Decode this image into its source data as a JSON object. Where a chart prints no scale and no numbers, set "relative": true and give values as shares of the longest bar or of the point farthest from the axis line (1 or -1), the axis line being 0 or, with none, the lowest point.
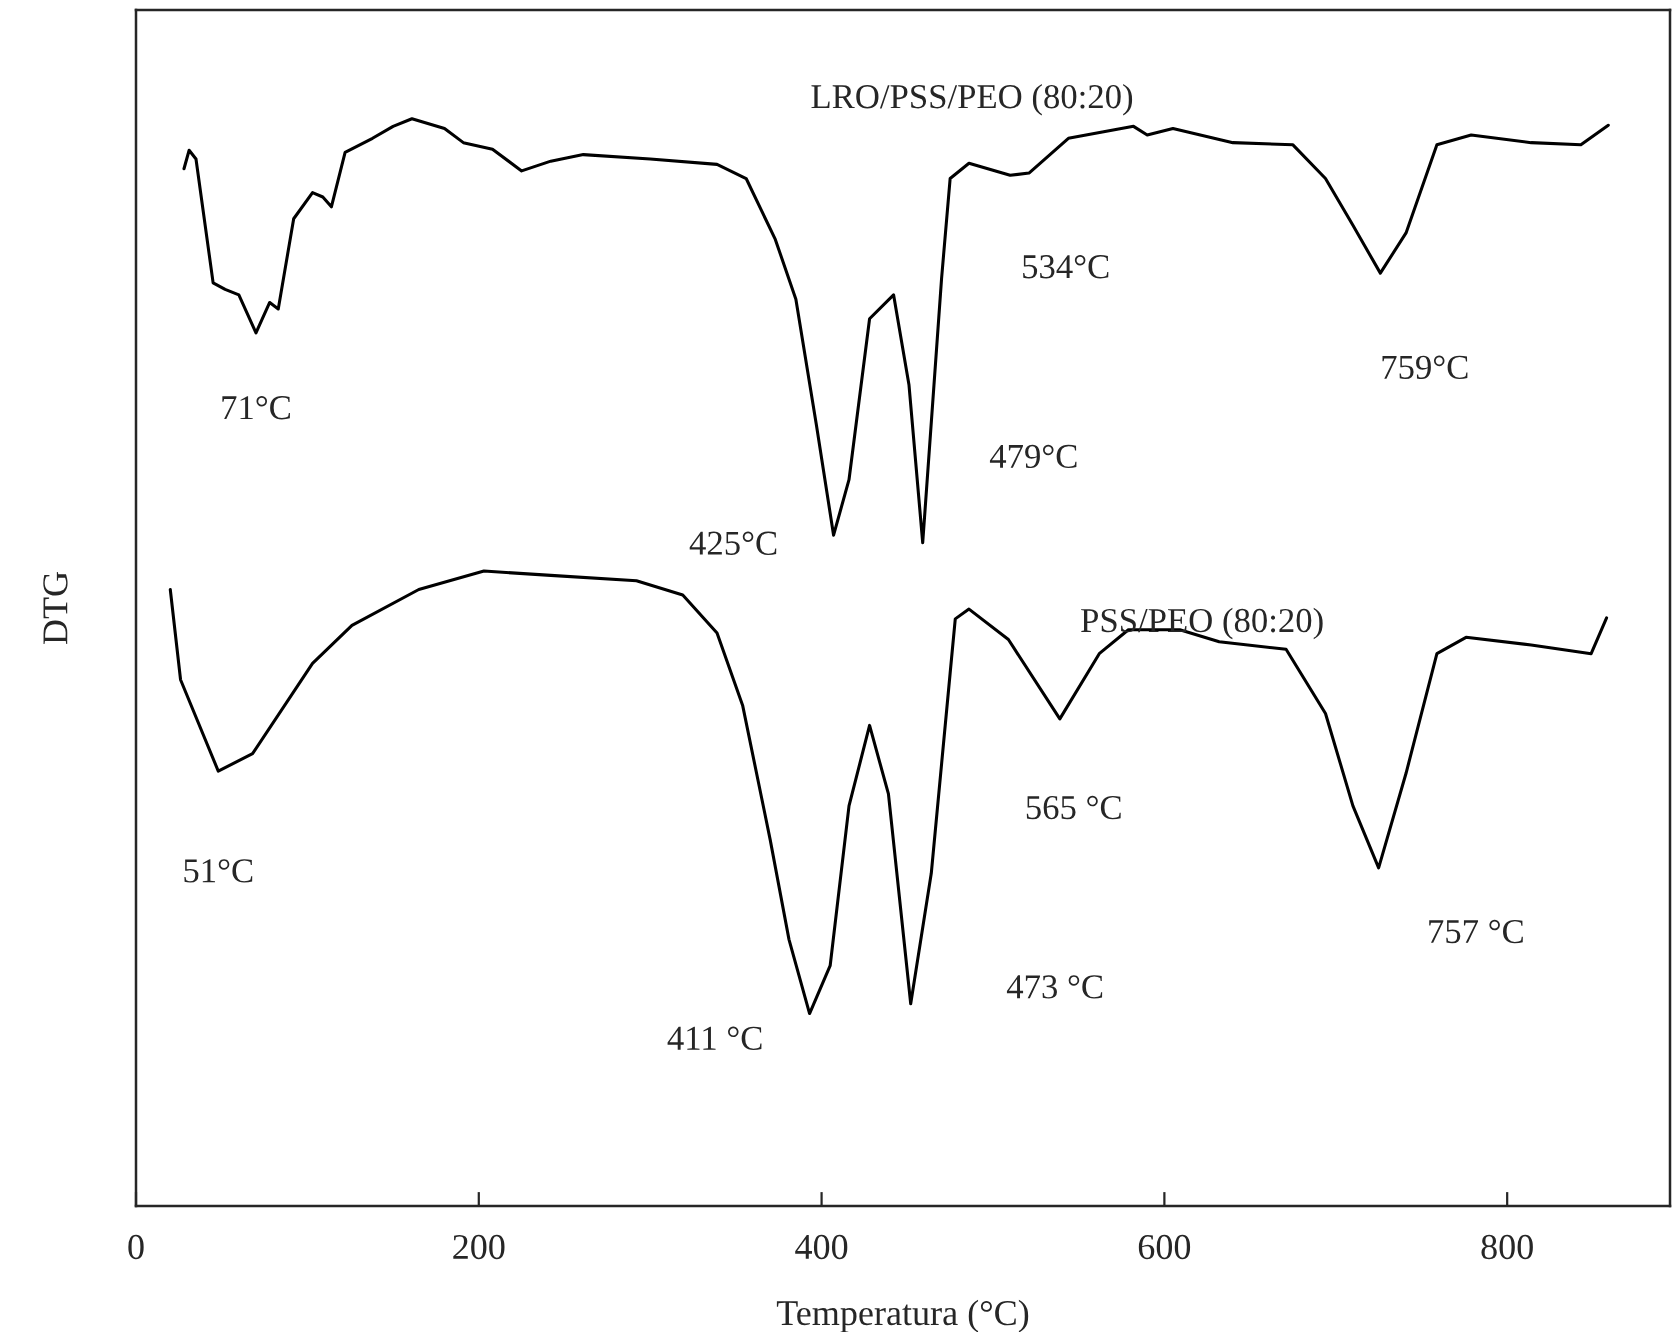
{
  "chart_data": {
    "type": "line",
    "relative": true,
    "xlabel": "Temperatura (°C)",
    "ylabel": "DTG",
    "xlim": [
      0,
      895
    ],
    "xticks": [
      0,
      200,
      400,
      600,
      800
    ],
    "grid": false,
    "legend": false,
    "series": [
      {
        "name": "LRO/PSS/PEO (80:20)",
        "color": "#000000",
        "x": [
          28,
          31,
          35,
          45,
          52,
          60,
          70,
          78,
          83,
          92,
          103,
          109,
          114,
          122,
          138,
          150,
          161,
          180,
          191,
          208,
          225,
          242,
          261,
          300,
          339,
          356,
          373,
          385,
          397,
          407,
          416,
          428,
          442,
          451,
          459,
          470,
          475,
          486,
          510,
          521,
          544,
          582,
          590,
          605,
          640,
          675,
          694,
          710,
          726,
          741,
          759,
          779,
          814,
          843,
          859
        ],
        "values": [
          0.954,
          0.971,
          0.963,
          0.849,
          0.843,
          0.838,
          0.803,
          0.831,
          0.825,
          0.908,
          0.932,
          0.928,
          0.919,
          0.969,
          0.982,
          0.993,
          1,
          0.991,
          0.978,
          0.972,
          0.952,
          0.961,
          0.967,
          0.963,
          0.958,
          0.945,
          0.889,
          0.834,
          0.718,
          0.617,
          0.668,
          0.816,
          0.838,
          0.755,
          0.61,
          0.853,
          0.945,
          0.959,
          0.948,
          0.95,
          0.982,
          0.993,
          0.985,
          0.991,
          0.978,
          0.976,
          0.945,
          0.902,
          0.858,
          0.895,
          0.976,
          0.985,
          0.978,
          0.976,
          0.994
        ]
      },
      {
        "name": "PSS/PEO (80:20)",
        "color": "#000000",
        "x": [
          20,
          26,
          48,
          68,
          103,
          126,
          165,
          203,
          242,
          292,
          319,
          339,
          354,
          370,
          381,
          393,
          405,
          416,
          428,
          439,
          452,
          464,
          475,
          478,
          486,
          509,
          539,
          562,
          579,
          609,
          632,
          671,
          694,
          710,
          725,
          741,
          759,
          776,
          814,
          849,
          858
        ],
        "values": [
          0.567,
          0.484,
          0.4,
          0.416,
          0.499,
          0.534,
          0.567,
          0.584,
          0.58,
          0.575,
          0.562,
          0.527,
          0.46,
          0.337,
          0.245,
          0.177,
          0.221,
          0.368,
          0.442,
          0.379,
          0.186,
          0.306,
          0.49,
          0.54,
          0.549,
          0.521,
          0.448,
          0.508,
          0.53,
          0.53,
          0.519,
          0.512,
          0.453,
          0.368,
          0.311,
          0.398,
          0.508,
          0.523,
          0.516,
          0.508,
          0.541
        ]
      }
    ],
    "annotations": [
      {
        "text": "71°C",
        "x": 70,
        "y": 0.803
      },
      {
        "text": "425°C",
        "x": 407,
        "y": 0.617
      },
      {
        "text": "479°C",
        "x": 459,
        "y": 0.61
      },
      {
        "text": "534°C",
        "x": 510,
        "y": 0.948
      },
      {
        "text": "759°C",
        "x": 726,
        "y": 0.858
      },
      {
        "text": "51°C",
        "x": 48,
        "y": 0.4
      },
      {
        "text": "411 °C",
        "x": 393,
        "y": 0.177
      },
      {
        "text": "473 °C",
        "x": 452,
        "y": 0.186
      },
      {
        "text": "565 °C",
        "x": 539,
        "y": 0.448
      },
      {
        "text": "757 °C",
        "x": 725,
        "y": 0.311
      }
    ]
  }
}
